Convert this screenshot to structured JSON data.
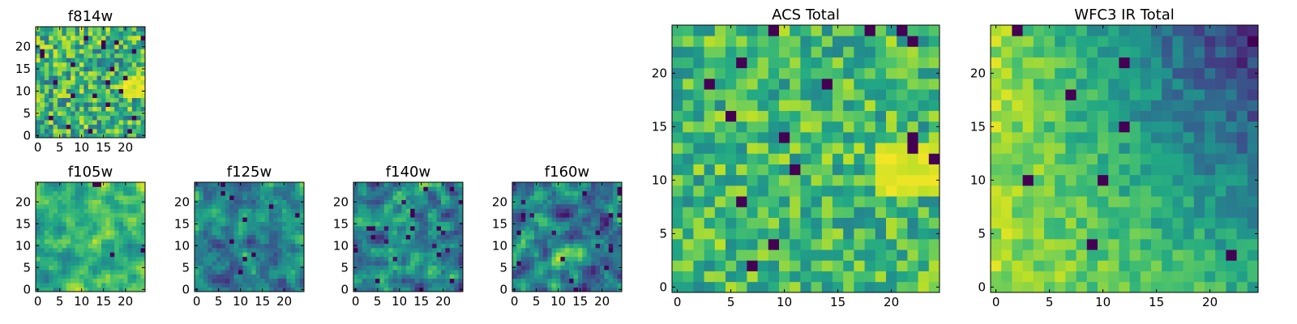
{
  "chart_data": [
    {
      "type": "heatmap",
      "title": "f814w",
      "grid_size": 25,
      "xlim": [
        0,
        25
      ],
      "ylim": [
        0,
        25
      ],
      "xticks": [
        0,
        5,
        10,
        15,
        20
      ],
      "yticks": [
        0,
        5,
        10,
        15,
        20
      ],
      "colormap": "viridis",
      "seed": 11,
      "features": "fine pixel noise with a bright patch on the right edge at y 9-13"
    },
    {
      "type": "heatmap",
      "title": "f105w",
      "grid_size": 25,
      "xlim": [
        0,
        25
      ],
      "ylim": [
        0,
        25
      ],
      "xticks": [
        0,
        5,
        10,
        15,
        20
      ],
      "yticks": [
        0,
        5,
        10,
        15,
        20
      ],
      "colormap": "viridis",
      "seed": 22,
      "features": "smooth yellow-green noise"
    },
    {
      "type": "heatmap",
      "title": "f125w",
      "grid_size": 25,
      "xlim": [
        0,
        25
      ],
      "ylim": [
        0,
        25
      ],
      "xticks": [
        0,
        5,
        10,
        15,
        20
      ],
      "yticks": [
        0,
        5,
        10,
        15,
        20
      ],
      "colormap": "viridis",
      "seed": 33,
      "features": "smooth green noise with scattered dark pixels"
    },
    {
      "type": "heatmap",
      "title": "f140w",
      "grid_size": 25,
      "xlim": [
        0,
        25
      ],
      "ylim": [
        0,
        25
      ],
      "xticks": [
        0,
        5,
        10,
        15,
        20
      ],
      "yticks": [
        0,
        5,
        10,
        15,
        20
      ],
      "colormap": "viridis",
      "seed": 44,
      "features": "smooth noise with dark blue patches"
    },
    {
      "type": "heatmap",
      "title": "f160w",
      "grid_size": 25,
      "xlim": [
        0,
        25
      ],
      "ylim": [
        0,
        25
      ],
      "xticks": [
        0,
        5,
        10,
        15,
        20
      ],
      "yticks": [
        0,
        5,
        10,
        15,
        20
      ],
      "colormap": "viridis",
      "seed": 55,
      "features": "smooth noise with dark blue patches"
    },
    {
      "type": "heatmap",
      "title": "ACS Total",
      "grid_size": 25,
      "xlim": [
        0,
        25
      ],
      "ylim": [
        0,
        25
      ],
      "xticks": [
        0,
        5,
        10,
        15,
        20
      ],
      "yticks": [
        0,
        5,
        10,
        15,
        20
      ],
      "colormap": "viridis",
      "seed": 66,
      "features": "pixel noise with a bright yellow blob on the right at x 20-25, y 8-14"
    },
    {
      "type": "heatmap",
      "title": "WFC3 IR Total",
      "grid_size": 25,
      "xlim": [
        0,
        25
      ],
      "ylim": [
        0,
        25
      ],
      "xticks": [
        0,
        5,
        10,
        15,
        20
      ],
      "yticks": [
        0,
        5,
        10,
        15,
        20
      ],
      "colormap": "viridis",
      "seed": 77,
      "features": "yellow left half fading to blue-green upper right"
    }
  ]
}
